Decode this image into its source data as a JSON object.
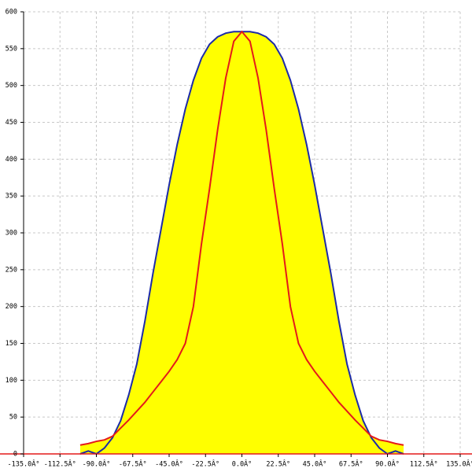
{
  "chart_data": {
    "type": "line",
    "x": [
      -100,
      -95,
      -90,
      -85,
      -80,
      -75,
      -70,
      -65,
      -60,
      -55,
      -50,
      -45,
      -40,
      -35,
      -30,
      -25,
      -20,
      -15,
      -10,
      -5,
      0,
      5,
      10,
      15,
      20,
      25,
      30,
      35,
      40,
      45,
      50,
      55,
      60,
      65,
      70,
      75,
      80,
      85,
      90,
      95,
      100
    ],
    "series": [
      {
        "color": "#1c2aa8",
        "values": [
          0,
          4,
          0,
          8,
          22,
          45,
          80,
          122,
          180,
          245,
          305,
          365,
          420,
          468,
          507,
          537,
          556,
          566,
          571,
          573,
          573,
          573,
          571,
          566,
          556,
          537,
          507,
          468,
          420,
          365,
          305,
          245,
          180,
          122,
          80,
          45,
          22,
          8,
          0,
          4,
          0
        ]
      },
      {
        "color": "#e41a1a",
        "values": [
          12,
          14,
          17,
          19,
          24,
          35,
          46,
          58,
          70,
          84,
          98,
          112,
          128,
          150,
          200,
          285,
          360,
          440,
          510,
          560,
          573,
          560,
          510,
          440,
          360,
          285,
          200,
          150,
          128,
          112,
          98,
          84,
          70,
          58,
          46,
          35,
          24,
          19,
          17,
          14,
          12
        ]
      }
    ],
    "fill": "#ffff00",
    "xlim": [
      -135,
      135
    ],
    "xticks": [
      {
        "value": -135,
        "label": "-135.0Â°"
      },
      {
        "value": -112.5,
        "label": "-112.5Â°"
      },
      {
        "value": -90,
        "label": "-90.0Â°"
      },
      {
        "value": -67.5,
        "label": "-67.5Â°"
      },
      {
        "value": -45,
        "label": "-45.0Â°"
      },
      {
        "value": -22.5,
        "label": "-22.5Â°"
      },
      {
        "value": 0,
        "label": "0.0Â°"
      },
      {
        "value": 22.5,
        "label": "22.5Â°"
      },
      {
        "value": 45,
        "label": "45.0Â°"
      },
      {
        "value": 67.5,
        "label": "67.5Â°"
      },
      {
        "value": 90,
        "label": "90.0Â°"
      },
      {
        "value": 112.5,
        "label": "112.5Â°"
      },
      {
        "value": 135,
        "label": "135.0Â°"
      }
    ],
    "ylim": [
      0,
      600
    ],
    "yticks": [
      0,
      50,
      100,
      150,
      200,
      250,
      300,
      350,
      400,
      450,
      500,
      550,
      600
    ],
    "grid": true
  }
}
